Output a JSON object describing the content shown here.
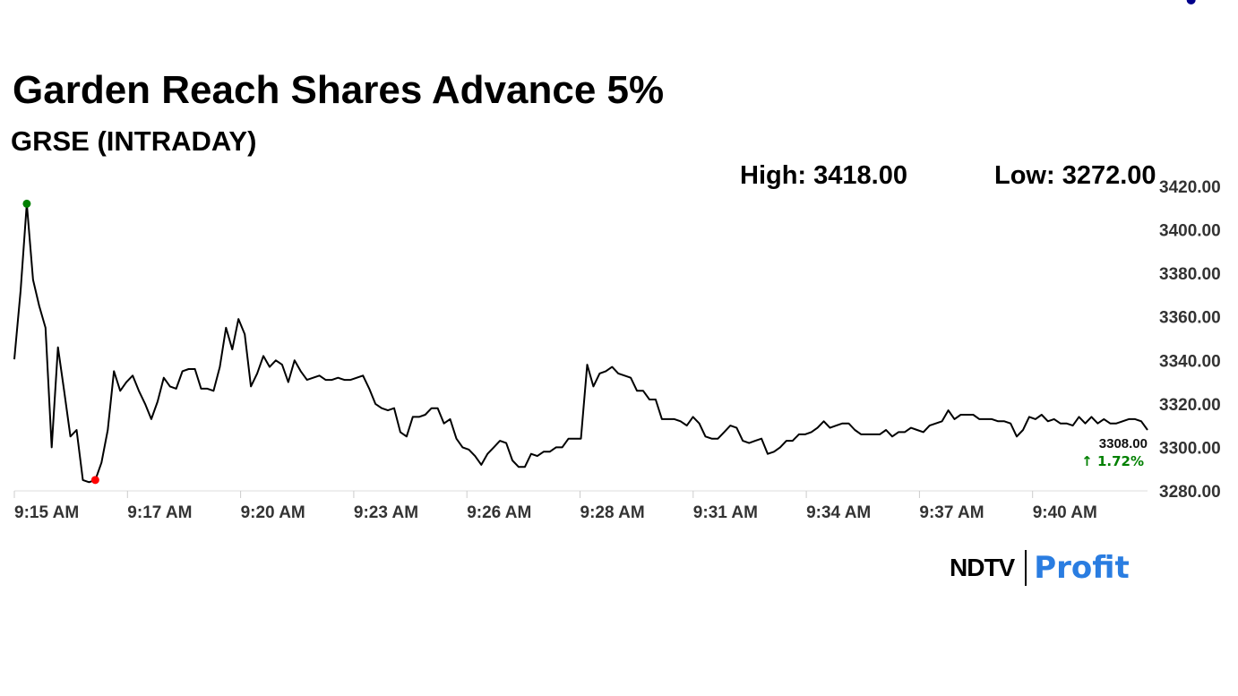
{
  "title": "Garden Reach Shares Advance 5%",
  "subtitle": "GRSE (INTRADAY)",
  "stats": {
    "high": "High: 3418.00",
    "low": "Low: 3272.00"
  },
  "branding": {
    "ndtv": "NDTV",
    "profit": "Profit"
  },
  "colors": {
    "line": "#000000",
    "high_marker": "#008000",
    "low_marker": "#ff0000",
    "last_marker": "#00008b",
    "change_text": "#008000",
    "brand_profit": "#2a7de1"
  },
  "chart_data": {
    "type": "line",
    "ylim": [
      3280,
      3420
    ],
    "y_ticks": [
      "3420.00",
      "3400.00",
      "3380.00",
      "3360.00",
      "3340.00",
      "3320.00",
      "3300.00",
      "3280.00"
    ],
    "x_ticks": [
      "9:15 AM",
      "9:17 AM",
      "9:20 AM",
      "9:23 AM",
      "9:26 AM",
      "9:28 AM",
      "9:31 AM",
      "9:34 AM",
      "9:37 AM",
      "9:40 AM"
    ],
    "grid": false,
    "last_value_label": "3308.00",
    "change_label": "↑ 1.72%",
    "high_point_index": 2,
    "low_point_index": 13,
    "last_point_index": 189,
    "series": [
      {
        "values": [
          3340.5,
          3372,
          3412,
          3377,
          3365,
          3355,
          3300,
          3346,
          3326,
          3305,
          3308,
          3285,
          3284,
          3285,
          3293,
          3308,
          3335,
          3326,
          3330,
          3333,
          3326,
          3320,
          3313,
          3321,
          3332,
          3328,
          3327,
          3335,
          3336,
          3336,
          3327,
          3327,
          3326,
          3337,
          3355,
          3345,
          3359,
          3352,
          3328,
          3334,
          3342,
          3337,
          3340,
          3338,
          3330,
          3340,
          3335,
          3331,
          3332,
          3333,
          3331,
          3331,
          3332,
          3331,
          3331,
          3332,
          3333,
          3327,
          3320,
          3318,
          3317,
          3318,
          3307,
          3305,
          3314,
          3314,
          3315,
          3318,
          3318,
          3311,
          3313,
          3304,
          3300,
          3299,
          3296,
          3292,
          3297,
          3300,
          3303,
          3302,
          3294,
          3291,
          3291,
          3297,
          3296,
          3298,
          3298,
          3300,
          3300,
          3304,
          3304,
          3304,
          3338,
          3328,
          3334,
          3335,
          3337,
          3334,
          3333,
          3332,
          3326,
          3326,
          3322,
          3322,
          3313,
          3313,
          3313,
          3312,
          3310,
          3314,
          3311,
          3305,
          3304,
          3304,
          3307,
          3310,
          3309,
          3303,
          3302,
          3303,
          3304,
          3297,
          3298,
          3300,
          3303,
          3303,
          3306,
          3306,
          3307,
          3309,
          3312,
          3309,
          3310,
          3311,
          3311,
          3308,
          3306,
          3306,
          3306,
          3306,
          3308,
          3305,
          3307,
          3307,
          3309,
          3308,
          3307,
          3310,
          3311,
          3312,
          3317,
          3313,
          3315,
          3315,
          3315,
          3313,
          3313,
          3313,
          3312,
          3312,
          3311,
          3305,
          3308,
          3314,
          3313,
          3315,
          3312,
          3313,
          3311,
          3311,
          3310,
          3314,
          3311,
          3314,
          3311,
          3313,
          3311,
          3311,
          3312,
          3313,
          3313,
          3312,
          3308
        ]
      }
    ]
  }
}
